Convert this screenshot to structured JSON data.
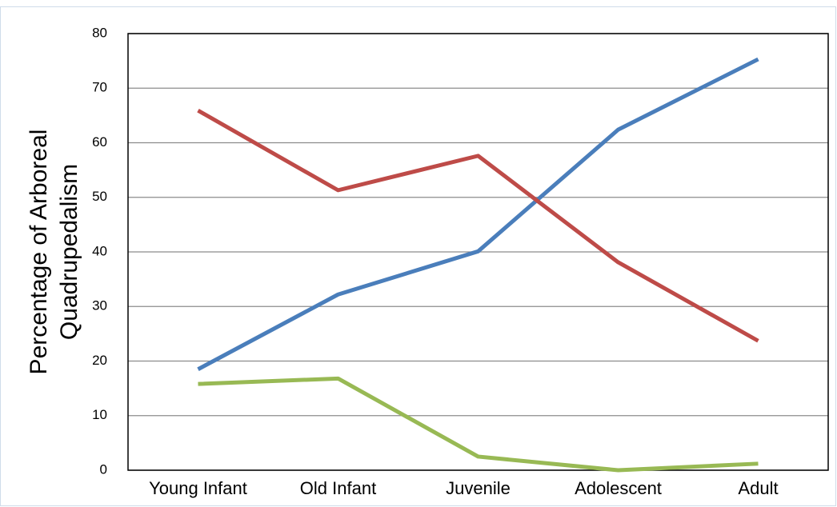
{
  "chart_data": {
    "type": "line",
    "ylabel": [
      "Percentage of Arboreal",
      "Quadrupedalism"
    ],
    "categories": [
      "Young Infant",
      "Old Infant",
      "Juvenile",
      "Adolescent",
      "Adult"
    ],
    "series": [
      {
        "color": "#4a7ebb",
        "values": [
          18.5,
          32.2,
          40.1,
          62.4,
          75.3
        ]
      },
      {
        "color": "#be4b48",
        "values": [
          65.9,
          51.3,
          57.6,
          38.1,
          23.7
        ]
      },
      {
        "color": "#98b954",
        "values": [
          15.8,
          16.8,
          2.5,
          0,
          1.2
        ]
      }
    ],
    "ylim": [
      0,
      80
    ],
    "yticks": [
      0,
      10,
      20,
      30,
      40,
      50,
      60,
      70,
      80
    ],
    "grid": true
  }
}
